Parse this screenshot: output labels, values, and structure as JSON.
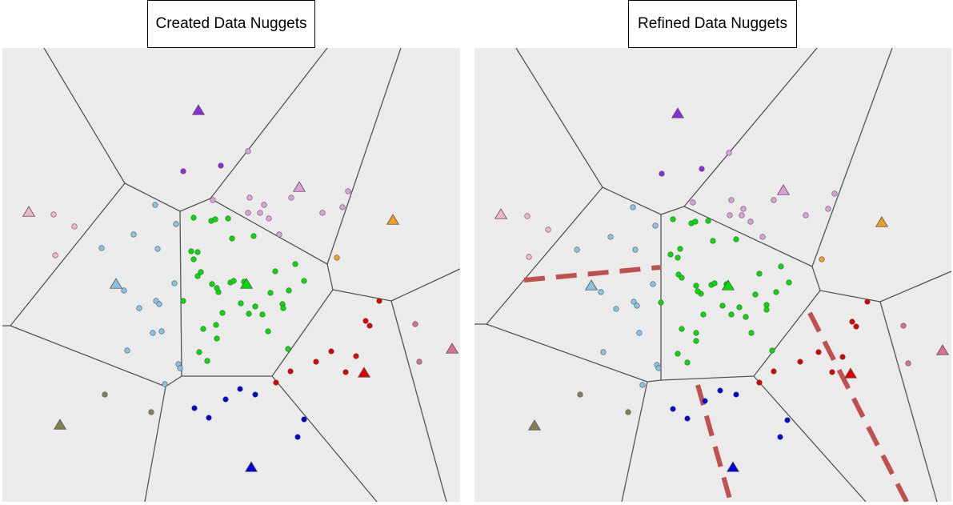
{
  "panels": {
    "left": {
      "title": "Created Data Nuggets"
    },
    "right": {
      "title": "Refined Data Nuggets"
    }
  },
  "colors": {
    "background": "#ebebeb",
    "boundary": "#555555",
    "refinement_line": "#c0504d",
    "clusters": {
      "purple": "#8a2be2",
      "pink": "#f4b6c2",
      "lilac": "#dda0dd",
      "light-blue": "#87c3e3",
      "green": "#00e000",
      "orange": "#f0a020",
      "red": "#e00000",
      "rose": "#d87093",
      "olive": "#808050",
      "blue": "#0000dd"
    }
  },
  "icons": {
    "centroid": "triangle",
    "nugget": "circle"
  }
}
